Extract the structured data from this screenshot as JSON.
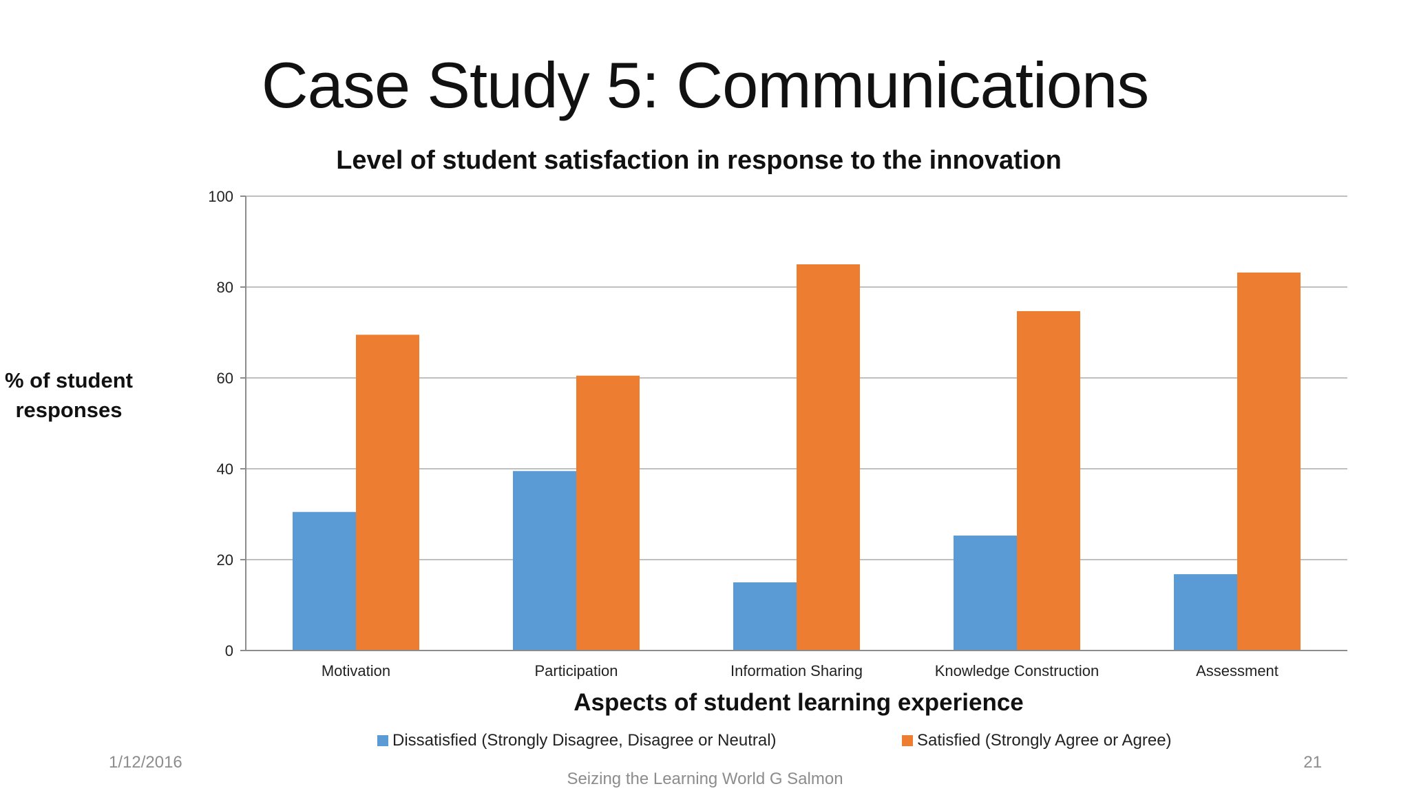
{
  "slide": {
    "title": "Case Study 5: Communications",
    "footer_date": "1/12/2016",
    "footer_page": "21",
    "footer_text": "Seizing the Learning World G Salmon"
  },
  "colors": {
    "dissatisfied": "#5b9bd5",
    "satisfied": "#ed7d31",
    "grid": "#bfbfbf",
    "axis": "#8c8c8c"
  },
  "chart_data": {
    "type": "bar",
    "title": "Level of student satisfaction in response to the innovation",
    "xlabel": "Aspects of student learning experience",
    "ylabel_lines": [
      "% of student",
      "responses"
    ],
    "ylim": [
      0,
      100
    ],
    "yticks": [
      0,
      20,
      40,
      60,
      80,
      100
    ],
    "grid": true,
    "legend_position": "bottom",
    "categories": [
      "Motivation",
      "Participation",
      "Information Sharing",
      "Knowledge Construction",
      "Assessment"
    ],
    "series": [
      {
        "name": "Dissatisfied (Strongly Disagree, Disagree or Neutral)",
        "values": [
          30.5,
          39.5,
          15,
          25.3,
          16.8
        ]
      },
      {
        "name": "Satisfied (Strongly Agree or Agree)",
        "values": [
          69.5,
          60.5,
          85,
          74.7,
          83.2
        ]
      }
    ]
  }
}
